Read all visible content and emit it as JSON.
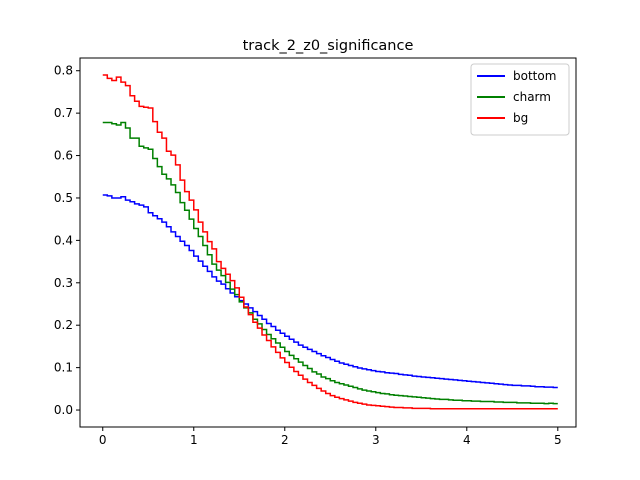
{
  "chart_data": {
    "type": "line",
    "title": "track_2_z0_significance",
    "xlabel": "",
    "ylabel": "",
    "xlim": [
      -0.25,
      5.2
    ],
    "ylim": [
      -0.04,
      0.83
    ],
    "xticks": [
      0,
      1,
      2,
      3,
      4,
      5
    ],
    "yticks": [
      0.0,
      0.1,
      0.2,
      0.3,
      0.4,
      0.5,
      0.6,
      0.7,
      0.8
    ],
    "xtick_labels": [
      "0",
      "1",
      "2",
      "3",
      "4",
      "5"
    ],
    "ytick_labels": [
      "0.0",
      "0.1",
      "0.2",
      "0.3",
      "0.4",
      "0.5",
      "0.6",
      "0.7",
      "0.8"
    ],
    "grid": false,
    "legend_position": "top-right",
    "step": "post",
    "series": [
      {
        "name": "bottom",
        "color": "#0000ff",
        "x": [
          0,
          0.05,
          0.1,
          0.15,
          0.2,
          0.25,
          0.3,
          0.35,
          0.4,
          0.45,
          0.5,
          0.55,
          0.6,
          0.65,
          0.7,
          0.75,
          0.8,
          0.85,
          0.9,
          0.95,
          1.0,
          1.05,
          1.1,
          1.15,
          1.2,
          1.25,
          1.3,
          1.35,
          1.4,
          1.45,
          1.5,
          1.55,
          1.6,
          1.65,
          1.7,
          1.75,
          1.8,
          1.85,
          1.9,
          1.95,
          2.0,
          2.05,
          2.1,
          2.15,
          2.2,
          2.25,
          2.3,
          2.35,
          2.4,
          2.45,
          2.5,
          2.55,
          2.6,
          2.65,
          2.7,
          2.75,
          2.8,
          2.85,
          2.9,
          2.95,
          3.0,
          3.05,
          3.1,
          3.15,
          3.2,
          3.25,
          3.3,
          3.35,
          3.4,
          3.45,
          3.5,
          3.55,
          3.6,
          3.65,
          3.7,
          3.75,
          3.8,
          3.85,
          3.9,
          3.95,
          4.0,
          4.05,
          4.1,
          4.15,
          4.2,
          4.25,
          4.3,
          4.35,
          4.4,
          4.45,
          4.5,
          4.55,
          4.6,
          4.65,
          4.7,
          4.75,
          4.8,
          4.85,
          4.9,
          4.95
        ],
        "values": [
          0.507,
          0.505,
          0.5,
          0.5,
          0.503,
          0.495,
          0.491,
          0.486,
          0.483,
          0.479,
          0.465,
          0.458,
          0.451,
          0.443,
          0.432,
          0.42,
          0.409,
          0.398,
          0.388,
          0.376,
          0.363,
          0.351,
          0.339,
          0.327,
          0.314,
          0.304,
          0.297,
          0.286,
          0.276,
          0.267,
          0.258,
          0.25,
          0.241,
          0.232,
          0.223,
          0.214,
          0.204,
          0.197,
          0.188,
          0.181,
          0.174,
          0.167,
          0.16,
          0.153,
          0.148,
          0.143,
          0.138,
          0.133,
          0.128,
          0.124,
          0.119,
          0.115,
          0.111,
          0.108,
          0.105,
          0.102,
          0.099,
          0.097,
          0.095,
          0.093,
          0.091,
          0.09,
          0.088,
          0.087,
          0.086,
          0.084,
          0.083,
          0.082,
          0.08,
          0.079,
          0.078,
          0.077,
          0.076,
          0.075,
          0.074,
          0.073,
          0.072,
          0.071,
          0.07,
          0.069,
          0.068,
          0.067,
          0.066,
          0.065,
          0.064,
          0.063,
          0.062,
          0.061,
          0.06,
          0.059,
          0.058,
          0.058,
          0.057,
          0.057,
          0.056,
          0.055,
          0.055,
          0.054,
          0.054,
          0.053
        ]
      },
      {
        "name": "charm",
        "color": "#008000",
        "x": [
          0,
          0.05,
          0.1,
          0.15,
          0.2,
          0.25,
          0.3,
          0.35,
          0.4,
          0.45,
          0.5,
          0.55,
          0.6,
          0.65,
          0.7,
          0.75,
          0.8,
          0.85,
          0.9,
          0.95,
          1.0,
          1.05,
          1.1,
          1.15,
          1.2,
          1.25,
          1.3,
          1.35,
          1.4,
          1.45,
          1.5,
          1.55,
          1.6,
          1.65,
          1.7,
          1.75,
          1.8,
          1.85,
          1.9,
          1.95,
          2.0,
          2.05,
          2.1,
          2.15,
          2.2,
          2.25,
          2.3,
          2.35,
          2.4,
          2.45,
          2.5,
          2.55,
          2.6,
          2.65,
          2.7,
          2.75,
          2.8,
          2.85,
          2.9,
          2.95,
          3.0,
          3.05,
          3.1,
          3.15,
          3.2,
          3.25,
          3.3,
          3.35,
          3.4,
          3.45,
          3.5,
          3.55,
          3.6,
          3.65,
          3.7,
          3.75,
          3.8,
          3.85,
          3.9,
          3.95,
          4.0,
          4.05,
          4.1,
          4.15,
          4.2,
          4.25,
          4.3,
          4.35,
          4.4,
          4.45,
          4.5,
          4.55,
          4.6,
          4.65,
          4.7,
          4.75,
          4.8,
          4.85,
          4.9,
          4.95
        ],
        "values": [
          0.678,
          0.678,
          0.675,
          0.672,
          0.678,
          0.665,
          0.641,
          0.641,
          0.622,
          0.618,
          0.615,
          0.593,
          0.574,
          0.556,
          0.545,
          0.531,
          0.513,
          0.489,
          0.471,
          0.45,
          0.428,
          0.409,
          0.388,
          0.366,
          0.344,
          0.33,
          0.317,
          0.301,
          0.285,
          0.272,
          0.255,
          0.241,
          0.229,
          0.214,
          0.203,
          0.19,
          0.178,
          0.168,
          0.158,
          0.148,
          0.138,
          0.129,
          0.121,
          0.113,
          0.105,
          0.098,
          0.09,
          0.085,
          0.078,
          0.074,
          0.069,
          0.065,
          0.062,
          0.059,
          0.056,
          0.053,
          0.05,
          0.047,
          0.045,
          0.043,
          0.041,
          0.039,
          0.038,
          0.036,
          0.035,
          0.034,
          0.033,
          0.032,
          0.031,
          0.03,
          0.029,
          0.028,
          0.027,
          0.026,
          0.025,
          0.025,
          0.024,
          0.023,
          0.023,
          0.022,
          0.022,
          0.021,
          0.021,
          0.02,
          0.02,
          0.02,
          0.019,
          0.019,
          0.018,
          0.018,
          0.018,
          0.017,
          0.017,
          0.017,
          0.016,
          0.016,
          0.016,
          0.015,
          0.016,
          0.015
        ]
      },
      {
        "name": "bg",
        "color": "#ff0000",
        "x": [
          0,
          0.05,
          0.1,
          0.15,
          0.2,
          0.25,
          0.3,
          0.35,
          0.4,
          0.45,
          0.5,
          0.55,
          0.6,
          0.65,
          0.7,
          0.75,
          0.8,
          0.85,
          0.9,
          0.95,
          1.0,
          1.05,
          1.1,
          1.15,
          1.2,
          1.25,
          1.3,
          1.35,
          1.4,
          1.45,
          1.5,
          1.55,
          1.6,
          1.65,
          1.7,
          1.75,
          1.8,
          1.85,
          1.9,
          1.95,
          2.0,
          2.05,
          2.1,
          2.15,
          2.2,
          2.25,
          2.3,
          2.35,
          2.4,
          2.45,
          2.5,
          2.55,
          2.6,
          2.65,
          2.7,
          2.75,
          2.8,
          2.85,
          2.9,
          2.95,
          3.0,
          3.05,
          3.1,
          3.15,
          3.2,
          3.25,
          3.3,
          3.35,
          3.4,
          3.45,
          3.5,
          3.55,
          3.6,
          3.65,
          3.7,
          3.75,
          3.8,
          3.85,
          3.9,
          3.95,
          4.0,
          4.05,
          4.1,
          4.15,
          4.2,
          4.25,
          4.3,
          4.35,
          4.4,
          4.45,
          4.5,
          4.55,
          4.6,
          4.65,
          4.7,
          4.75,
          4.8,
          4.85,
          4.9,
          4.95
        ],
        "values": [
          0.79,
          0.782,
          0.777,
          0.785,
          0.773,
          0.765,
          0.741,
          0.728,
          0.716,
          0.714,
          0.712,
          0.68,
          0.655,
          0.641,
          0.61,
          0.601,
          0.578,
          0.542,
          0.515,
          0.495,
          0.472,
          0.443,
          0.42,
          0.397,
          0.38,
          0.35,
          0.334,
          0.32,
          0.305,
          0.288,
          0.266,
          0.243,
          0.225,
          0.207,
          0.193,
          0.177,
          0.164,
          0.149,
          0.136,
          0.123,
          0.112,
          0.101,
          0.091,
          0.082,
          0.073,
          0.065,
          0.058,
          0.051,
          0.045,
          0.039,
          0.034,
          0.03,
          0.027,
          0.024,
          0.021,
          0.018,
          0.016,
          0.014,
          0.012,
          0.011,
          0.01,
          0.009,
          0.008,
          0.007,
          0.006,
          0.006,
          0.005,
          0.005,
          0.004,
          0.004,
          0.004,
          0.004,
          0.003,
          0.003,
          0.003,
          0.003,
          0.003,
          0.003,
          0.003,
          0.003,
          0.003,
          0.003,
          0.003,
          0.003,
          0.003,
          0.003,
          0.003,
          0.003,
          0.003,
          0.003,
          0.003,
          0.003,
          0.003,
          0.003,
          0.003,
          0.003,
          0.003,
          0.003,
          0.003,
          0.003
        ]
      }
    ]
  }
}
